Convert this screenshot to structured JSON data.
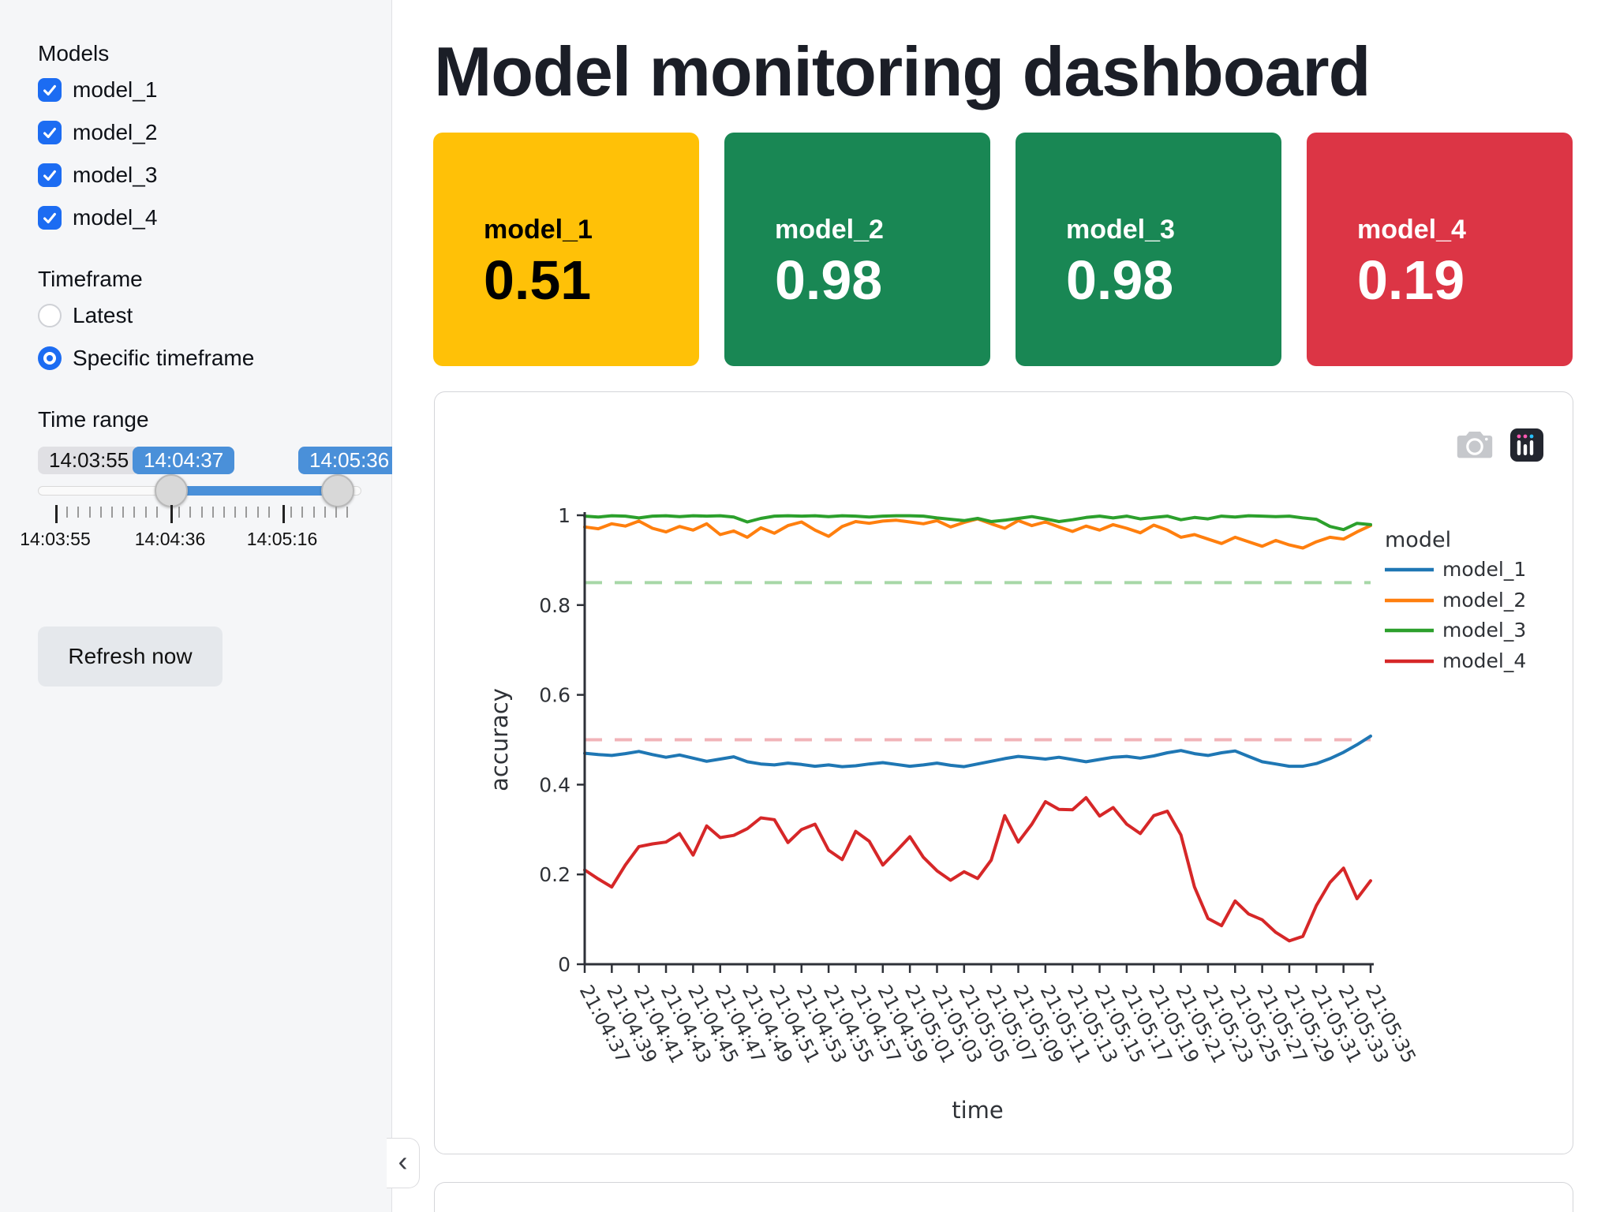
{
  "header": {
    "title": "Model monitoring dashboard"
  },
  "sidebar": {
    "models_label": "Models",
    "models": [
      {
        "label": "model_1",
        "checked": true
      },
      {
        "label": "model_2",
        "checked": true
      },
      {
        "label": "model_3",
        "checked": true
      },
      {
        "label": "model_4",
        "checked": true
      }
    ],
    "timeframe_label": "Timeframe",
    "timeframe_options": [
      {
        "label": "Latest",
        "selected": false
      },
      {
        "label": "Specific timeframe",
        "selected": true
      }
    ],
    "time_range_label": "Time range",
    "slider": {
      "min_label": "14:03:55",
      "start_value": "14:04:37",
      "end_value": "14:05:36",
      "axis_ticks": [
        "14:03:55",
        "14:04:36",
        "14:05:16"
      ]
    },
    "refresh_button": "Refresh now",
    "collapse_icon": "chevron-left"
  },
  "cards": [
    {
      "label": "model_1",
      "value": "0.51",
      "bg": "#ffc107",
      "fg": "#000000"
    },
    {
      "label": "model_2",
      "value": "0.98",
      "bg": "#198754",
      "fg": "#ffffff"
    },
    {
      "label": "model_3",
      "value": "0.98",
      "bg": "#198754",
      "fg": "#ffffff"
    },
    {
      "label": "model_4",
      "value": "0.19",
      "bg": "#dc3545",
      "fg": "#ffffff"
    }
  ],
  "modebar_icons": [
    "camera",
    "plotly-logo"
  ],
  "colors": {
    "accent_blue": "#1c6cf2",
    "slider_blue": "#4a90d9",
    "sidebar_bg": "#f5f6f8",
    "threshold_green": "#a7d7a7",
    "threshold_pink": "#f1b3b8"
  },
  "chart_data": {
    "type": "line",
    "title": "",
    "xlabel": "time",
    "ylabel": "accuracy",
    "ylim": [
      0,
      1
    ],
    "yticks": [
      0,
      0.2,
      0.4,
      0.6,
      0.8,
      1
    ],
    "grid": false,
    "legend_title": "model",
    "legend_position": "right",
    "x_tick_every": 2,
    "x": [
      "21:04:37",
      "21:04:38",
      "21:04:39",
      "21:04:40",
      "21:04:41",
      "21:04:42",
      "21:04:43",
      "21:04:44",
      "21:04:45",
      "21:04:46",
      "21:04:47",
      "21:04:48",
      "21:04:49",
      "21:04:50",
      "21:04:51",
      "21:04:52",
      "21:04:53",
      "21:04:54",
      "21:04:55",
      "21:04:56",
      "21:04:57",
      "21:04:58",
      "21:04:59",
      "21:05:00",
      "21:05:01",
      "21:05:02",
      "21:05:03",
      "21:05:04",
      "21:05:05",
      "21:05:06",
      "21:05:07",
      "21:05:08",
      "21:05:09",
      "21:05:10",
      "21:05:11",
      "21:05:12",
      "21:05:13",
      "21:05:14",
      "21:05:15",
      "21:05:16",
      "21:05:17",
      "21:05:18",
      "21:05:19",
      "21:05:20",
      "21:05:21",
      "21:05:22",
      "21:05:23",
      "21:05:24",
      "21:05:25",
      "21:05:26",
      "21:05:27",
      "21:05:28",
      "21:05:29",
      "21:05:30",
      "21:05:31",
      "21:05:32",
      "21:05:33",
      "21:05:34",
      "21:05:35"
    ],
    "series": [
      {
        "name": "model_1",
        "color": "#1f77b4",
        "values": [
          0.47,
          0.467,
          0.465,
          0.469,
          0.474,
          0.467,
          0.461,
          0.466,
          0.459,
          0.452,
          0.457,
          0.462,
          0.451,
          0.446,
          0.444,
          0.448,
          0.445,
          0.441,
          0.444,
          0.44,
          0.442,
          0.446,
          0.449,
          0.445,
          0.441,
          0.444,
          0.448,
          0.443,
          0.44,
          0.446,
          0.452,
          0.458,
          0.463,
          0.46,
          0.457,
          0.461,
          0.456,
          0.451,
          0.456,
          0.461,
          0.463,
          0.459,
          0.464,
          0.471,
          0.476,
          0.469,
          0.465,
          0.471,
          0.475,
          0.463,
          0.451,
          0.446,
          0.441,
          0.441,
          0.447,
          0.458,
          0.472,
          0.489,
          0.508
        ]
      },
      {
        "name": "model_2",
        "color": "#ff7f0e",
        "values": [
          0.974,
          0.97,
          0.981,
          0.976,
          0.987,
          0.971,
          0.963,
          0.975,
          0.967,
          0.981,
          0.957,
          0.965,
          0.951,
          0.972,
          0.96,
          0.977,
          0.985,
          0.967,
          0.953,
          0.975,
          0.986,
          0.982,
          0.987,
          0.989,
          0.985,
          0.981,
          0.988,
          0.974,
          0.984,
          0.992,
          0.981,
          0.971,
          0.988,
          0.977,
          0.985,
          0.974,
          0.964,
          0.976,
          0.967,
          0.979,
          0.971,
          0.961,
          0.978,
          0.967,
          0.951,
          0.957,
          0.947,
          0.937,
          0.951,
          0.941,
          0.931,
          0.944,
          0.934,
          0.927,
          0.941,
          0.951,
          0.947,
          0.963,
          0.977
        ]
      },
      {
        "name": "model_3",
        "color": "#2ca02c",
        "values": [
          0.998,
          0.996,
          0.999,
          0.998,
          0.994,
          0.998,
          0.999,
          0.997,
          0.999,
          0.998,
          0.999,
          0.996,
          0.985,
          0.993,
          0.998,
          0.999,
          0.998,
          0.999,
          0.997,
          0.999,
          0.998,
          0.996,
          0.998,
          0.999,
          0.999,
          0.998,
          0.994,
          0.991,
          0.988,
          0.993,
          0.986,
          0.989,
          0.993,
          0.997,
          0.992,
          0.986,
          0.99,
          0.995,
          0.998,
          0.994,
          0.998,
          0.992,
          0.995,
          0.998,
          0.99,
          0.995,
          0.992,
          0.998,
          0.996,
          0.999,
          0.998,
          0.997,
          0.998,
          0.994,
          0.991,
          0.975,
          0.968,
          0.982,
          0.979
        ]
      },
      {
        "name": "model_4",
        "color": "#d62728",
        "values": [
          0.21,
          0.19,
          0.172,
          0.221,
          0.262,
          0.268,
          0.272,
          0.291,
          0.243,
          0.308,
          0.282,
          0.287,
          0.302,
          0.326,
          0.322,
          0.271,
          0.3,
          0.312,
          0.254,
          0.233,
          0.296,
          0.274,
          0.221,
          0.252,
          0.284,
          0.238,
          0.208,
          0.187,
          0.206,
          0.191,
          0.232,
          0.331,
          0.272,
          0.312,
          0.362,
          0.345,
          0.344,
          0.371,
          0.33,
          0.349,
          0.312,
          0.291,
          0.331,
          0.341,
          0.288,
          0.172,
          0.102,
          0.086,
          0.141,
          0.112,
          0.099,
          0.071,
          0.052,
          0.062,
          0.131,
          0.182,
          0.214,
          0.146,
          0.186
        ]
      }
    ],
    "reference_lines": [
      {
        "y": 0.85,
        "color": "#a7d7a7",
        "style": "dashed"
      },
      {
        "y": 0.5,
        "color": "#f1b3b8",
        "style": "dashed"
      }
    ]
  }
}
